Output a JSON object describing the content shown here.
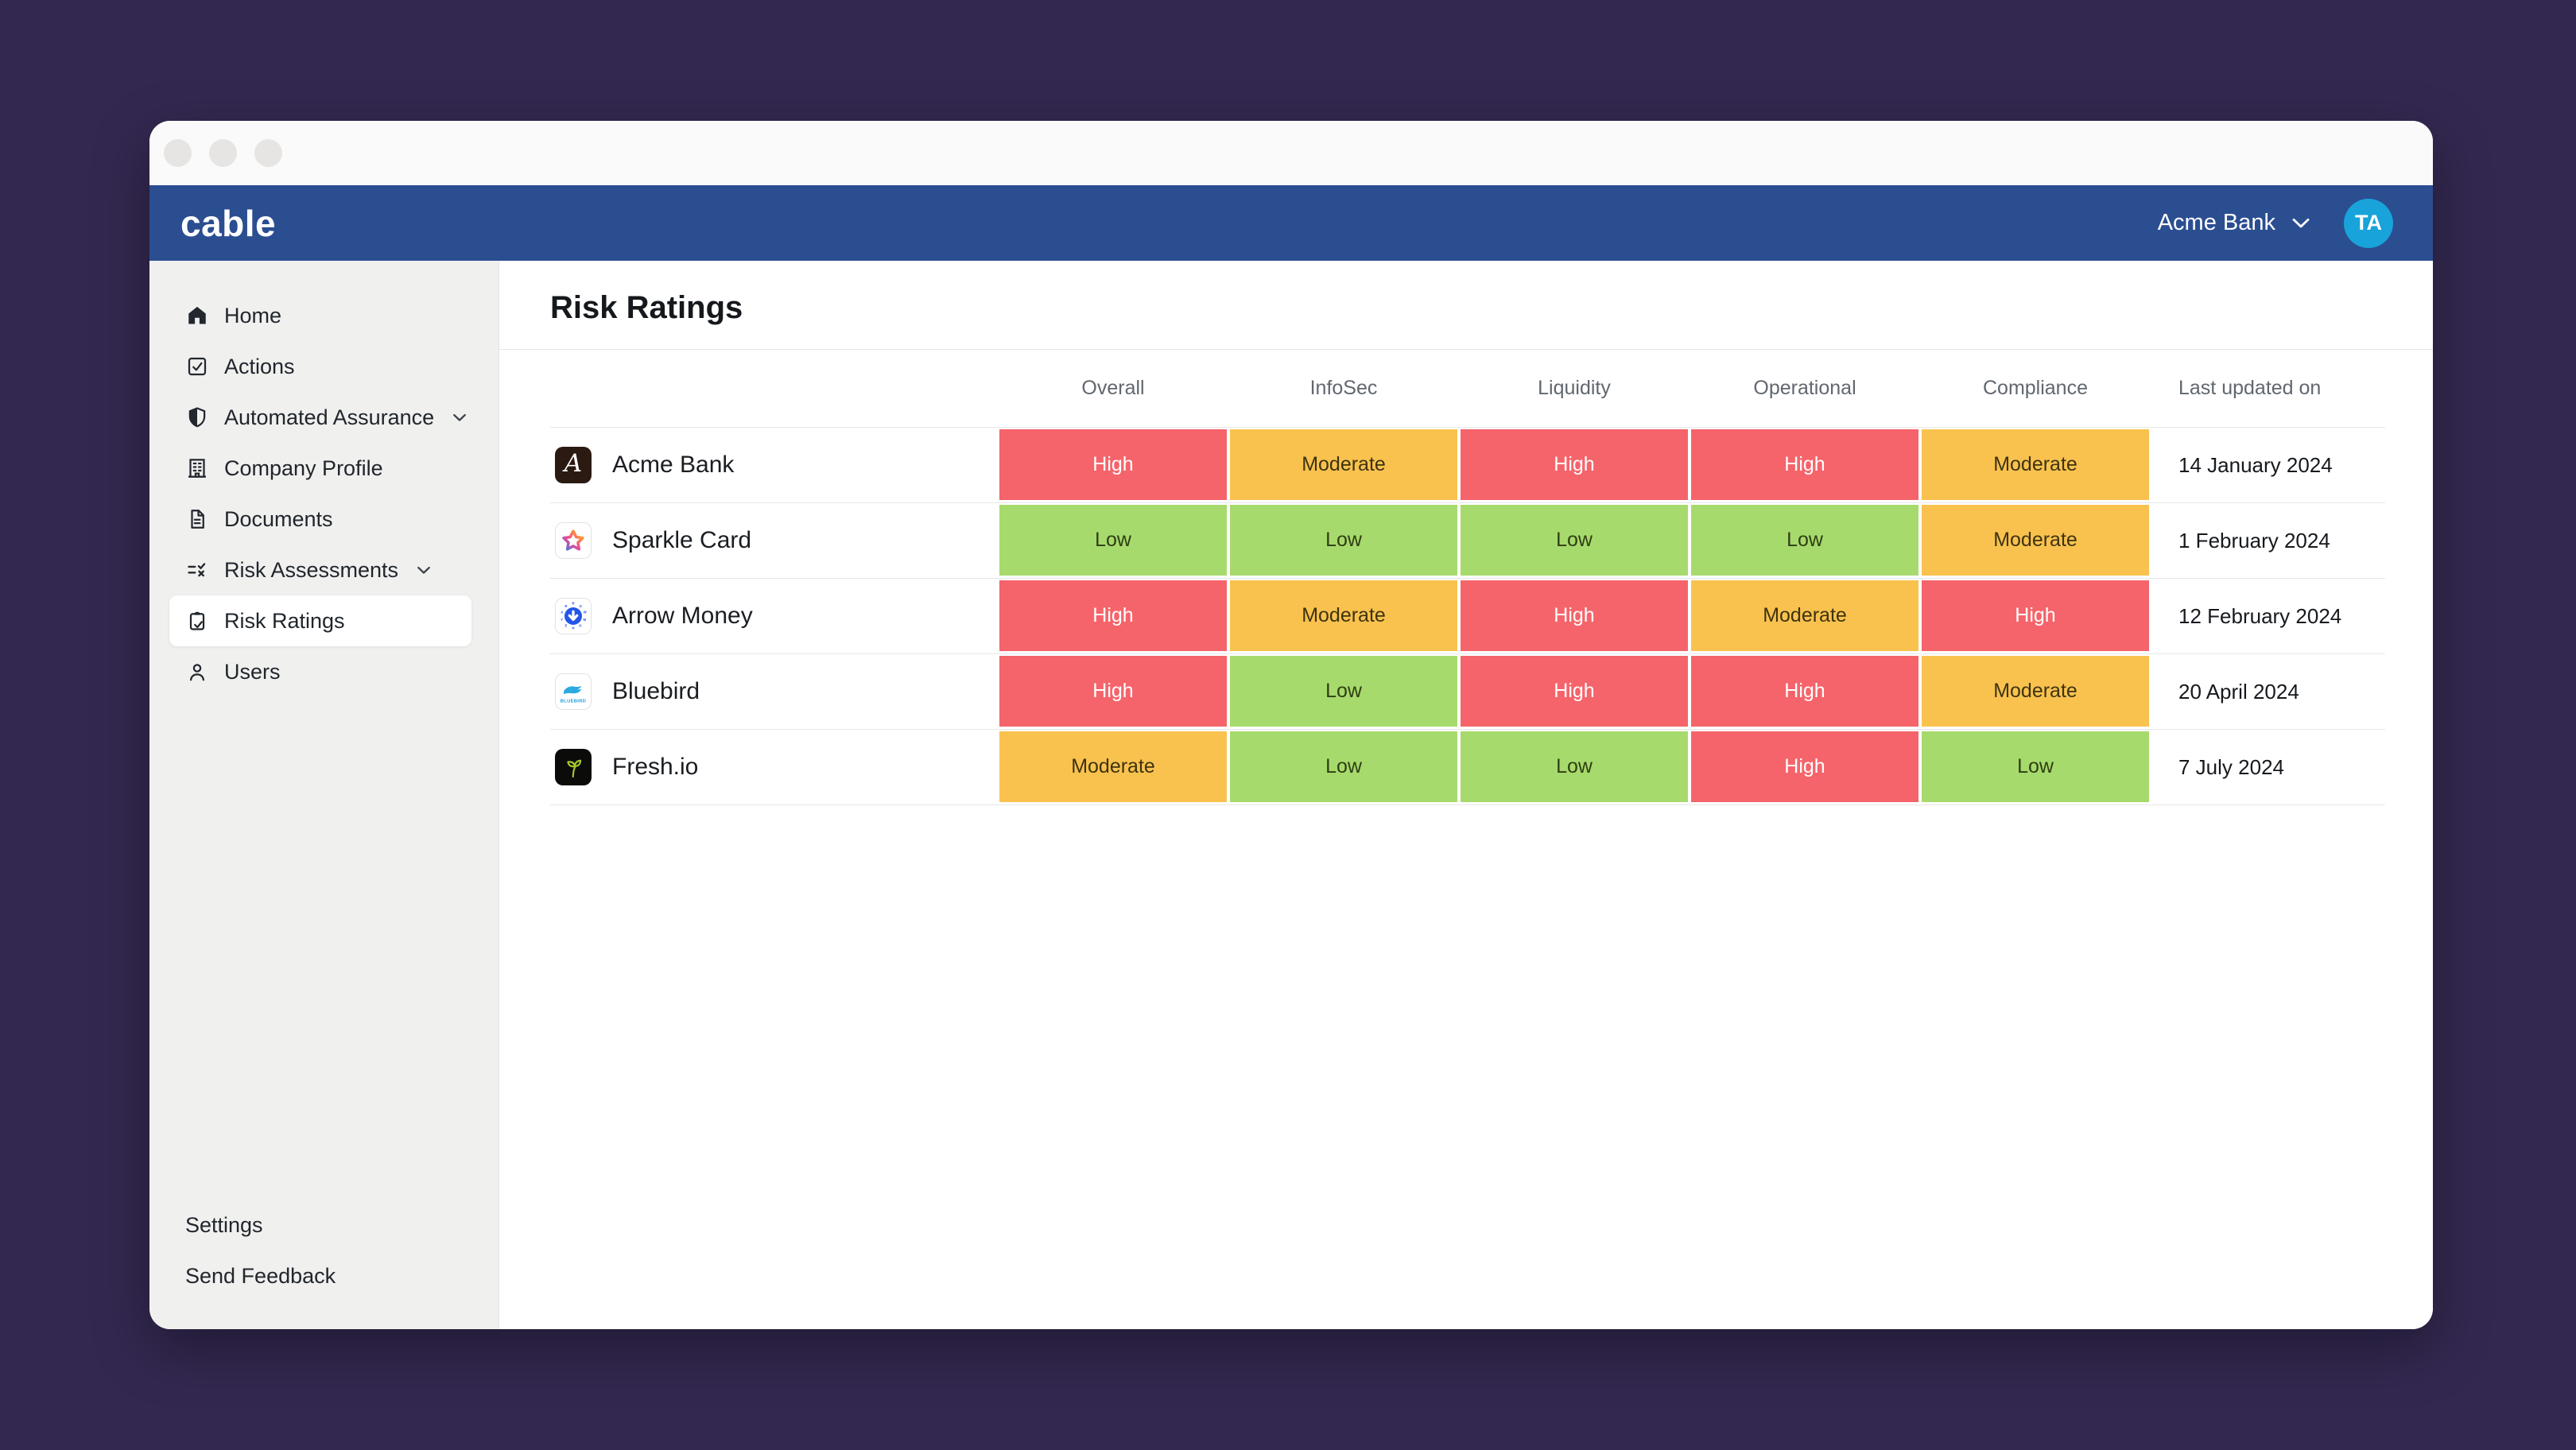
{
  "appbar": {
    "logo": "cable",
    "org": "Acme Bank",
    "avatar_initials": "TA"
  },
  "sidebar": {
    "items": [
      {
        "label": "Home",
        "icon": "home"
      },
      {
        "label": "Actions",
        "icon": "checkbox"
      },
      {
        "label": "Automated Assurance",
        "icon": "shield",
        "chevron": true
      },
      {
        "label": "Company Profile",
        "icon": "building"
      },
      {
        "label": "Documents",
        "icon": "document"
      },
      {
        "label": "Risk Assessments",
        "icon": "list-check",
        "chevron": true
      },
      {
        "label": "Risk Ratings",
        "icon": "clipboard-check",
        "selected": true
      },
      {
        "label": "Users",
        "icon": "user"
      }
    ],
    "footer_items": [
      {
        "label": "Settings"
      },
      {
        "label": "Send Feedback"
      }
    ]
  },
  "page": {
    "title": "Risk Ratings"
  },
  "table": {
    "columns": [
      "Overall",
      "InfoSec",
      "Liquidity",
      "Operational",
      "Compliance",
      "Last updated on"
    ],
    "rows": [
      {
        "company": "Acme Bank",
        "logo": "acme",
        "ratings": [
          "High",
          "Moderate",
          "High",
          "High",
          "Moderate"
        ],
        "last_updated": "14 January 2024"
      },
      {
        "company": "Sparkle Card",
        "logo": "sparkle",
        "ratings": [
          "Low",
          "Low",
          "Low",
          "Low",
          "Moderate"
        ],
        "last_updated": "1 February 2024"
      },
      {
        "company": "Arrow Money",
        "logo": "arrow",
        "ratings": [
          "High",
          "Moderate",
          "High",
          "Moderate",
          "High"
        ],
        "last_updated": "12 February 2024"
      },
      {
        "company": "Bluebird",
        "logo": "bluebird",
        "ratings": [
          "High",
          "Low",
          "High",
          "High",
          "Moderate"
        ],
        "last_updated": "20 April 2024"
      },
      {
        "company": "Fresh.io",
        "logo": "fresh",
        "ratings": [
          "Moderate",
          "Low",
          "Low",
          "High",
          "Low"
        ],
        "last_updated": "7 July 2024"
      }
    ]
  },
  "rating_colors": {
    "High": {
      "bg": "#F5646B",
      "text": "#FFFFFF"
    },
    "Moderate": {
      "bg": "#F9C24F",
      "text": "#3E330F"
    },
    "Low": {
      "bg": "#A7DA6C",
      "text": "#2E3E12"
    }
  },
  "theme": {
    "desktop_bg": "#332850",
    "titlebar_bg": "#FAFAFA",
    "header_bg": "#2B4E91",
    "avatar_bg": "#18A3DA",
    "sidebar_bg": "#F0F0EF"
  }
}
